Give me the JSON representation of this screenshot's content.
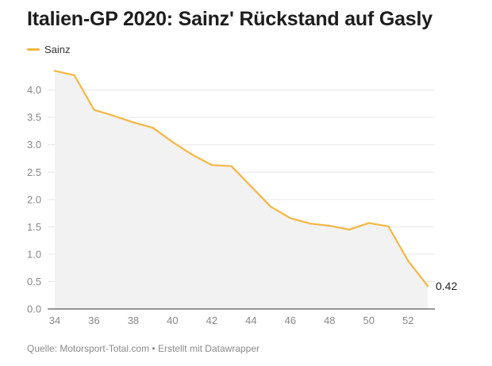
{
  "header": {
    "title": "Italien-GP 2020: Sainz' Rückstand auf Gasly"
  },
  "legend": {
    "series_label": "Sainz"
  },
  "footer": {
    "source_label": "Quelle:",
    "source_name": "Motorsport-Total.com",
    "separator": "•",
    "credit": "Erstellt mit Datawrapper"
  },
  "colors": {
    "line": "#f5b642",
    "area": "#f2f2f2",
    "grid": "#e6e6e6",
    "axis": "#333333"
  },
  "chart_data": {
    "type": "line",
    "title": "Italien-GP 2020: Sainz' Rückstand auf Gasly",
    "xlabel": "",
    "ylabel": "",
    "xlim": [
      34,
      53
    ],
    "ylim": [
      0,
      4.4
    ],
    "x_ticks": [
      34,
      36,
      38,
      40,
      42,
      44,
      46,
      48,
      50,
      52
    ],
    "y_ticks": [
      0,
      0.5,
      1.0,
      1.5,
      2.0,
      2.5,
      3.0,
      3.5,
      4.0
    ],
    "y_tick_labels": [
      "0.0",
      "0.5",
      "1.0",
      "1.5",
      "2.0",
      "2.5",
      "3.0",
      "3.5",
      "4.0"
    ],
    "grid": true,
    "legend_position": "top-left",
    "series": [
      {
        "name": "Sainz",
        "x": [
          34,
          35,
          36,
          37,
          38,
          39,
          40,
          41,
          42,
          43,
          44,
          45,
          46,
          47,
          48,
          49,
          50,
          51,
          52,
          53
        ],
        "values": [
          4.35,
          4.27,
          3.64,
          3.53,
          3.41,
          3.31,
          3.05,
          2.82,
          2.63,
          2.61,
          2.24,
          1.87,
          1.66,
          1.56,
          1.52,
          1.45,
          1.57,
          1.51,
          0.88,
          0.42
        ]
      }
    ],
    "end_label": "0.42"
  }
}
